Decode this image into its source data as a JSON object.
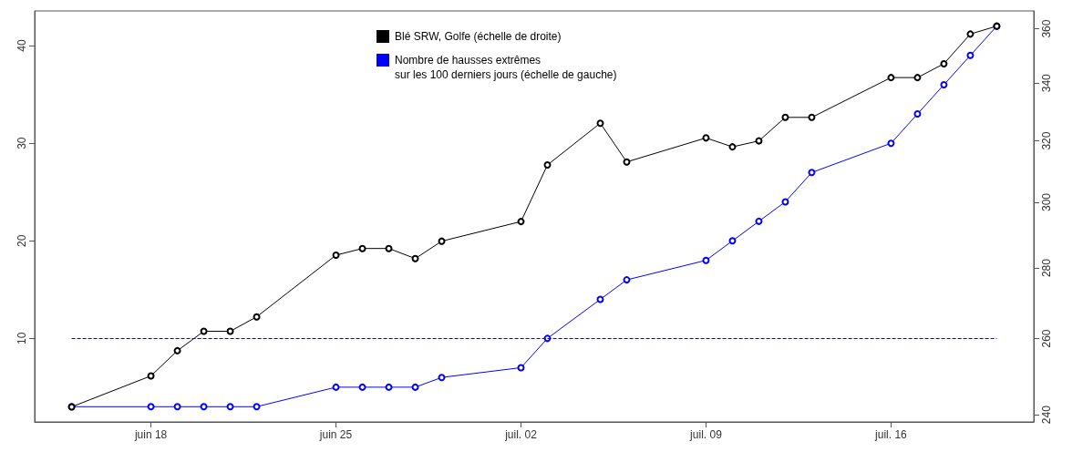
{
  "chart_data": {
    "type": "line",
    "x": [
      "--06-15",
      "--06-18",
      "--06-19",
      "--06-20",
      "--06-21",
      "--06-22",
      "--06-25",
      "--06-26",
      "--06-27",
      "--06-28",
      "--06-29",
      "--07-02",
      "--07-03",
      "--07-05",
      "--07-06",
      "--07-09",
      "--07-10",
      "--07-11",
      "--07-12",
      "--07-13",
      "--07-16",
      "--07-17",
      "--07-18",
      "--07-19",
      "--07-20"
    ],
    "series": [
      {
        "name": "Blé SRW, Golfe (échelle de droite)",
        "color": "#000000",
        "axis": "y2",
        "values": [
          242,
          250,
          256.7,
          262,
          262,
          266,
          283.8,
          285.8,
          285.8,
          282.8,
          288,
          294,
          312,
          326,
          313,
          321,
          318,
          320,
          328,
          328,
          342,
          342,
          347,
          358,
          361
        ]
      },
      {
        "name": "Nombre de hausses extrêmes\nsur les 100 derniers jours (échelle de gauche)",
        "color": "#0000ff",
        "values": [
          3,
          3,
          3,
          3,
          3,
          3,
          5,
          5,
          5,
          5,
          6,
          7,
          10,
          14,
          16,
          18,
          20,
          22,
          24,
          27,
          30,
          33,
          36,
          39,
          42
        ]
      }
    ],
    "xlim": [
      "--06-13T14:24",
      "--07-21T09:36"
    ],
    "xticks": [
      {
        "value": "--06-18",
        "label": "juin 18"
      },
      {
        "value": "--06-25",
        "label": "juin 25"
      },
      {
        "value": "--07-02",
        "label": "juil. 02"
      },
      {
        "value": "--07-09",
        "label": "juil. 09"
      },
      {
        "value": "--07-16",
        "label": "juil. 16"
      }
    ],
    "ylim": [
      1.44,
      43.56
    ],
    "yticks": [
      10,
      20,
      30,
      40
    ],
    "y2lim": [
      238.2,
      366.8
    ],
    "y2ticks": [
      240,
      260,
      280,
      300,
      320,
      340,
      360
    ],
    "log": "y2",
    "ref_lines": [
      {
        "axis": "y",
        "value": 10,
        "color": "#0000ff",
        "line_style": "dashed"
      }
    ],
    "marker": "circle",
    "line_style": "solid",
    "grid": false,
    "legend": "top"
  }
}
